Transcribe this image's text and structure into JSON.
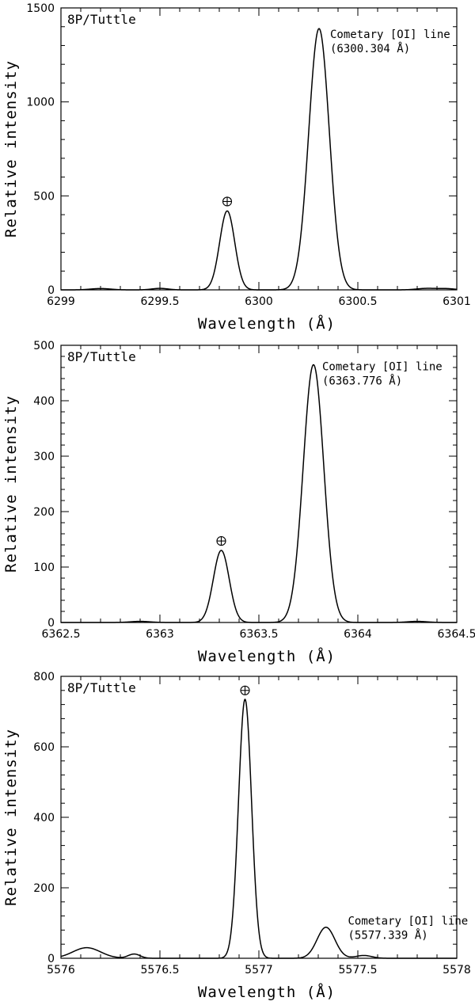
{
  "chart_data": [
    {
      "type": "line",
      "panel_label": "8P/Tuttle",
      "xlabel": "Wavelength (Å)",
      "ylabel": "Relative intensity",
      "xlim": [
        6299,
        6301
      ],
      "ylim": [
        0,
        1500
      ],
      "xticks": [
        6299,
        6299.5,
        6300,
        6300.5,
        6301
      ],
      "xtick_labels": [
        "6299",
        "6299.5",
        "6300",
        "6300.5",
        "6301"
      ],
      "yticks": [
        0,
        500,
        1000,
        1500
      ],
      "ytick_labels": [
        "0",
        "500",
        "1000",
        "1500"
      ],
      "peaks": [
        {
          "center": 6299.84,
          "height": 420,
          "sigma": 0.038
        },
        {
          "center": 6300.304,
          "height": 1390,
          "sigma": 0.052
        }
      ],
      "bumps": [
        {
          "center": 6299.2,
          "height": 7,
          "sigma": 0.05
        },
        {
          "center": 6299.5,
          "height": 8,
          "sigma": 0.04
        },
        {
          "center": 6300.85,
          "height": 8,
          "sigma": 0.05
        },
        {
          "center": 6300.95,
          "height": 6,
          "sigma": 0.04
        }
      ],
      "annotations": [
        {
          "kind": "text",
          "lines": [
            "Cometary [OI] line",
            "(6300.304 Å)"
          ],
          "x": 6300.36,
          "y": 1340
        },
        {
          "kind": "earth_symbol",
          "x": 6299.84,
          "y": 470
        }
      ]
    },
    {
      "type": "line",
      "panel_label": "8P/Tuttle",
      "xlabel": "Wavelength (Å)",
      "ylabel": "Relative intensity",
      "xlim": [
        6362.5,
        6364.5
      ],
      "ylim": [
        0,
        500
      ],
      "xticks": [
        6362.5,
        6363,
        6363.5,
        6364,
        6364.5
      ],
      "xtick_labels": [
        "6362.5",
        "6363",
        "6363.5",
        "6364",
        "6364.5"
      ],
      "yticks": [
        0,
        100,
        200,
        300,
        400,
        500
      ],
      "ytick_labels": [
        "0",
        "100",
        "200",
        "300",
        "400",
        "500"
      ],
      "peaks": [
        {
          "center": 6363.31,
          "height": 130,
          "sigma": 0.04
        },
        {
          "center": 6363.776,
          "height": 465,
          "sigma": 0.052
        }
      ],
      "bumps": [
        {
          "center": 6362.9,
          "height": 2,
          "sigma": 0.05
        },
        {
          "center": 6364.3,
          "height": 2,
          "sigma": 0.05
        }
      ],
      "annotations": [
        {
          "kind": "text",
          "lines": [
            "Cometary [OI] line",
            "(6363.776 Å)"
          ],
          "x": 6363.82,
          "y": 455
        },
        {
          "kind": "earth_symbol",
          "x": 6363.31,
          "y": 147
        }
      ]
    },
    {
      "type": "line",
      "panel_label": "8P/Tuttle",
      "xlabel": "Wavelength (Å)",
      "ylabel": "Relative intensity",
      "xlim": [
        5576,
        5578
      ],
      "ylim": [
        0,
        800
      ],
      "xticks": [
        5576,
        5576.5,
        5577,
        5577.5,
        5578
      ],
      "xtick_labels": [
        "5576",
        "5576.5",
        "5577",
        "5577.5",
        "5578"
      ],
      "yticks": [
        0,
        200,
        400,
        600,
        800
      ],
      "ytick_labels": [
        "0",
        "200",
        "400",
        "600",
        "800"
      ],
      "peaks": [
        {
          "center": 5576.93,
          "height": 735,
          "sigma": 0.033
        },
        {
          "center": 5577.339,
          "height": 88,
          "sigma": 0.045
        }
      ],
      "bumps": [
        {
          "center": 5576.13,
          "height": 30,
          "sigma": 0.07
        },
        {
          "center": 5576.37,
          "height": 12,
          "sigma": 0.03
        },
        {
          "center": 5577.53,
          "height": 8,
          "sigma": 0.04
        }
      ],
      "annotations": [
        {
          "kind": "text",
          "lines": [
            "Cometary [OI] line",
            "(5577.339 Å)"
          ],
          "x": 5577.45,
          "y": 95
        },
        {
          "kind": "earth_symbol",
          "x": 5576.93,
          "y": 760
        }
      ]
    }
  ]
}
